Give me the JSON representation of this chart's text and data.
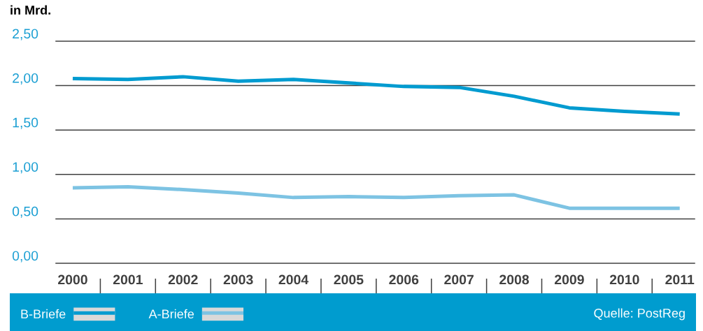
{
  "chart_data": {
    "type": "line",
    "ylabel": "in Mrd.",
    "categories": [
      "2000",
      "2001",
      "2002",
      "2003",
      "2004",
      "2005",
      "2006",
      "2007",
      "2008",
      "2009",
      "2010",
      "2011"
    ],
    "series": [
      {
        "name": "B-Briefe",
        "color": "#009bd0",
        "values": [
          2.08,
          2.07,
          2.1,
          2.05,
          2.07,
          2.03,
          1.99,
          1.98,
          1.88,
          1.75,
          1.71,
          1.68
        ]
      },
      {
        "name": "A-Briefe",
        "color": "#7dc3e3",
        "values": [
          0.85,
          0.86,
          0.83,
          0.79,
          0.74,
          0.75,
          0.74,
          0.76,
          0.77,
          0.62,
          0.62,
          0.62
        ]
      }
    ],
    "ylim": [
      0,
      2.5
    ],
    "yticks": [
      {
        "value": 0,
        "label": "0,00"
      },
      {
        "value": 0.5,
        "label": "0,50"
      },
      {
        "value": 1,
        "label": "1,00"
      },
      {
        "value": 1.5,
        "label": "1,50"
      },
      {
        "value": 2,
        "label": "2,00"
      },
      {
        "value": 2.5,
        "label": "2,50"
      }
    ],
    "grid": "y",
    "legend": "bottom",
    "line_style": "solid",
    "annotations": [
      "Quelle: PostReg"
    ]
  }
}
